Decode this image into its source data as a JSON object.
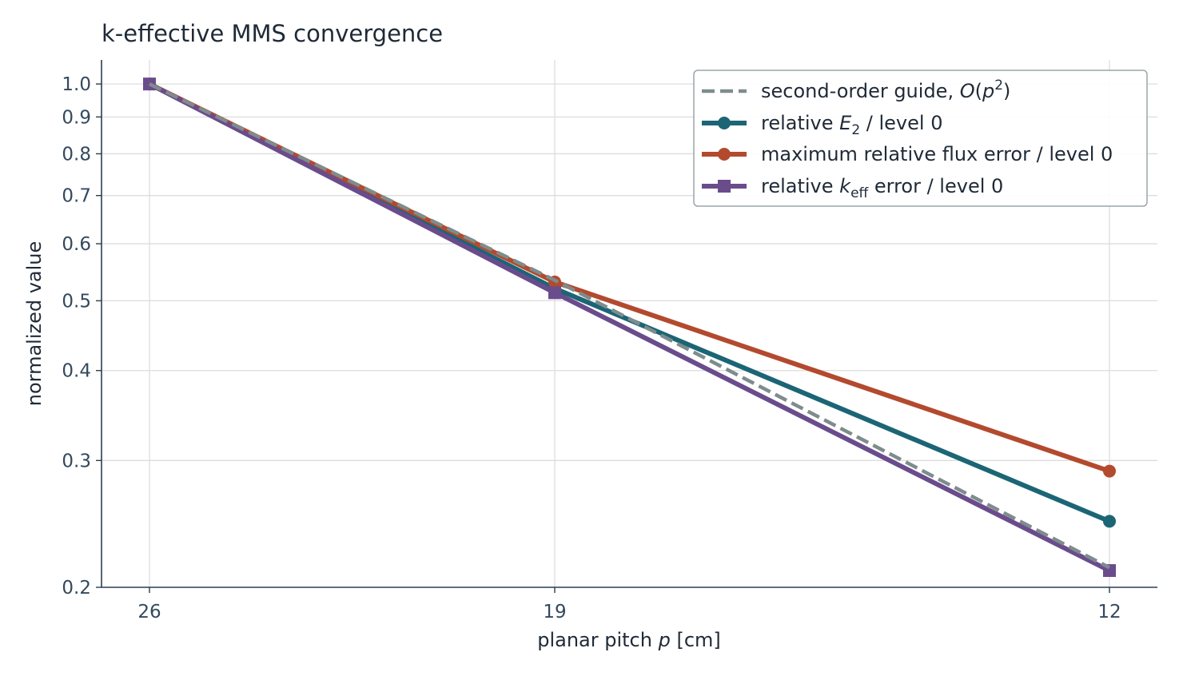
{
  "chart_data": {
    "type": "line",
    "title": "k-effective MMS convergence",
    "xlabel": {
      "prefix": "planar pitch ",
      "var": "p",
      "suffix": " [cm]"
    },
    "ylabel": "normalized value",
    "x": [
      26,
      19,
      12
    ],
    "x_tick_labels": [
      "26",
      "19",
      "12"
    ],
    "y_scale": "log",
    "ylim": [
      0.2,
      1.08
    ],
    "y_ticks": [
      0.2,
      0.3,
      0.4,
      0.5,
      0.6,
      0.7,
      0.8,
      0.9,
      1.0
    ],
    "y_tick_labels": [
      "0.2",
      "0.3",
      "0.4",
      "0.5",
      "0.6",
      "0.7",
      "0.8",
      "0.9",
      "1.0"
    ],
    "grid": true,
    "legend_position": "top-right",
    "series": [
      {
        "key": "guide",
        "legend": {
          "prefix": "second-order guide, ",
          "math_base": "O(p",
          "math_sup": "2",
          "math_end": ")"
        },
        "values": [
          1.0,
          0.534,
          0.213
        ],
        "color": "#7f8c8d",
        "style": "dashed",
        "marker": "none"
      },
      {
        "key": "e2",
        "legend": {
          "prefix": "relative ",
          "var": "E",
          "sub": "2",
          "suffix": " / level 0"
        },
        "values": [
          1.0,
          0.52,
          0.247
        ],
        "color": "#1b6575",
        "style": "solid",
        "marker": "circle"
      },
      {
        "key": "flux",
        "legend": {
          "text": "maximum relative flux error / level 0"
        },
        "values": [
          1.0,
          0.531,
          0.29
        ],
        "color": "#b34a2e",
        "style": "solid",
        "marker": "circle"
      },
      {
        "key": "keff",
        "legend": {
          "prefix": "relative ",
          "var": "k",
          "sub": "eff",
          "suffix": " error / level 0"
        },
        "values": [
          1.0,
          0.513,
          0.211
        ],
        "color": "#6a4c8c",
        "style": "solid",
        "marker": "square"
      }
    ]
  }
}
